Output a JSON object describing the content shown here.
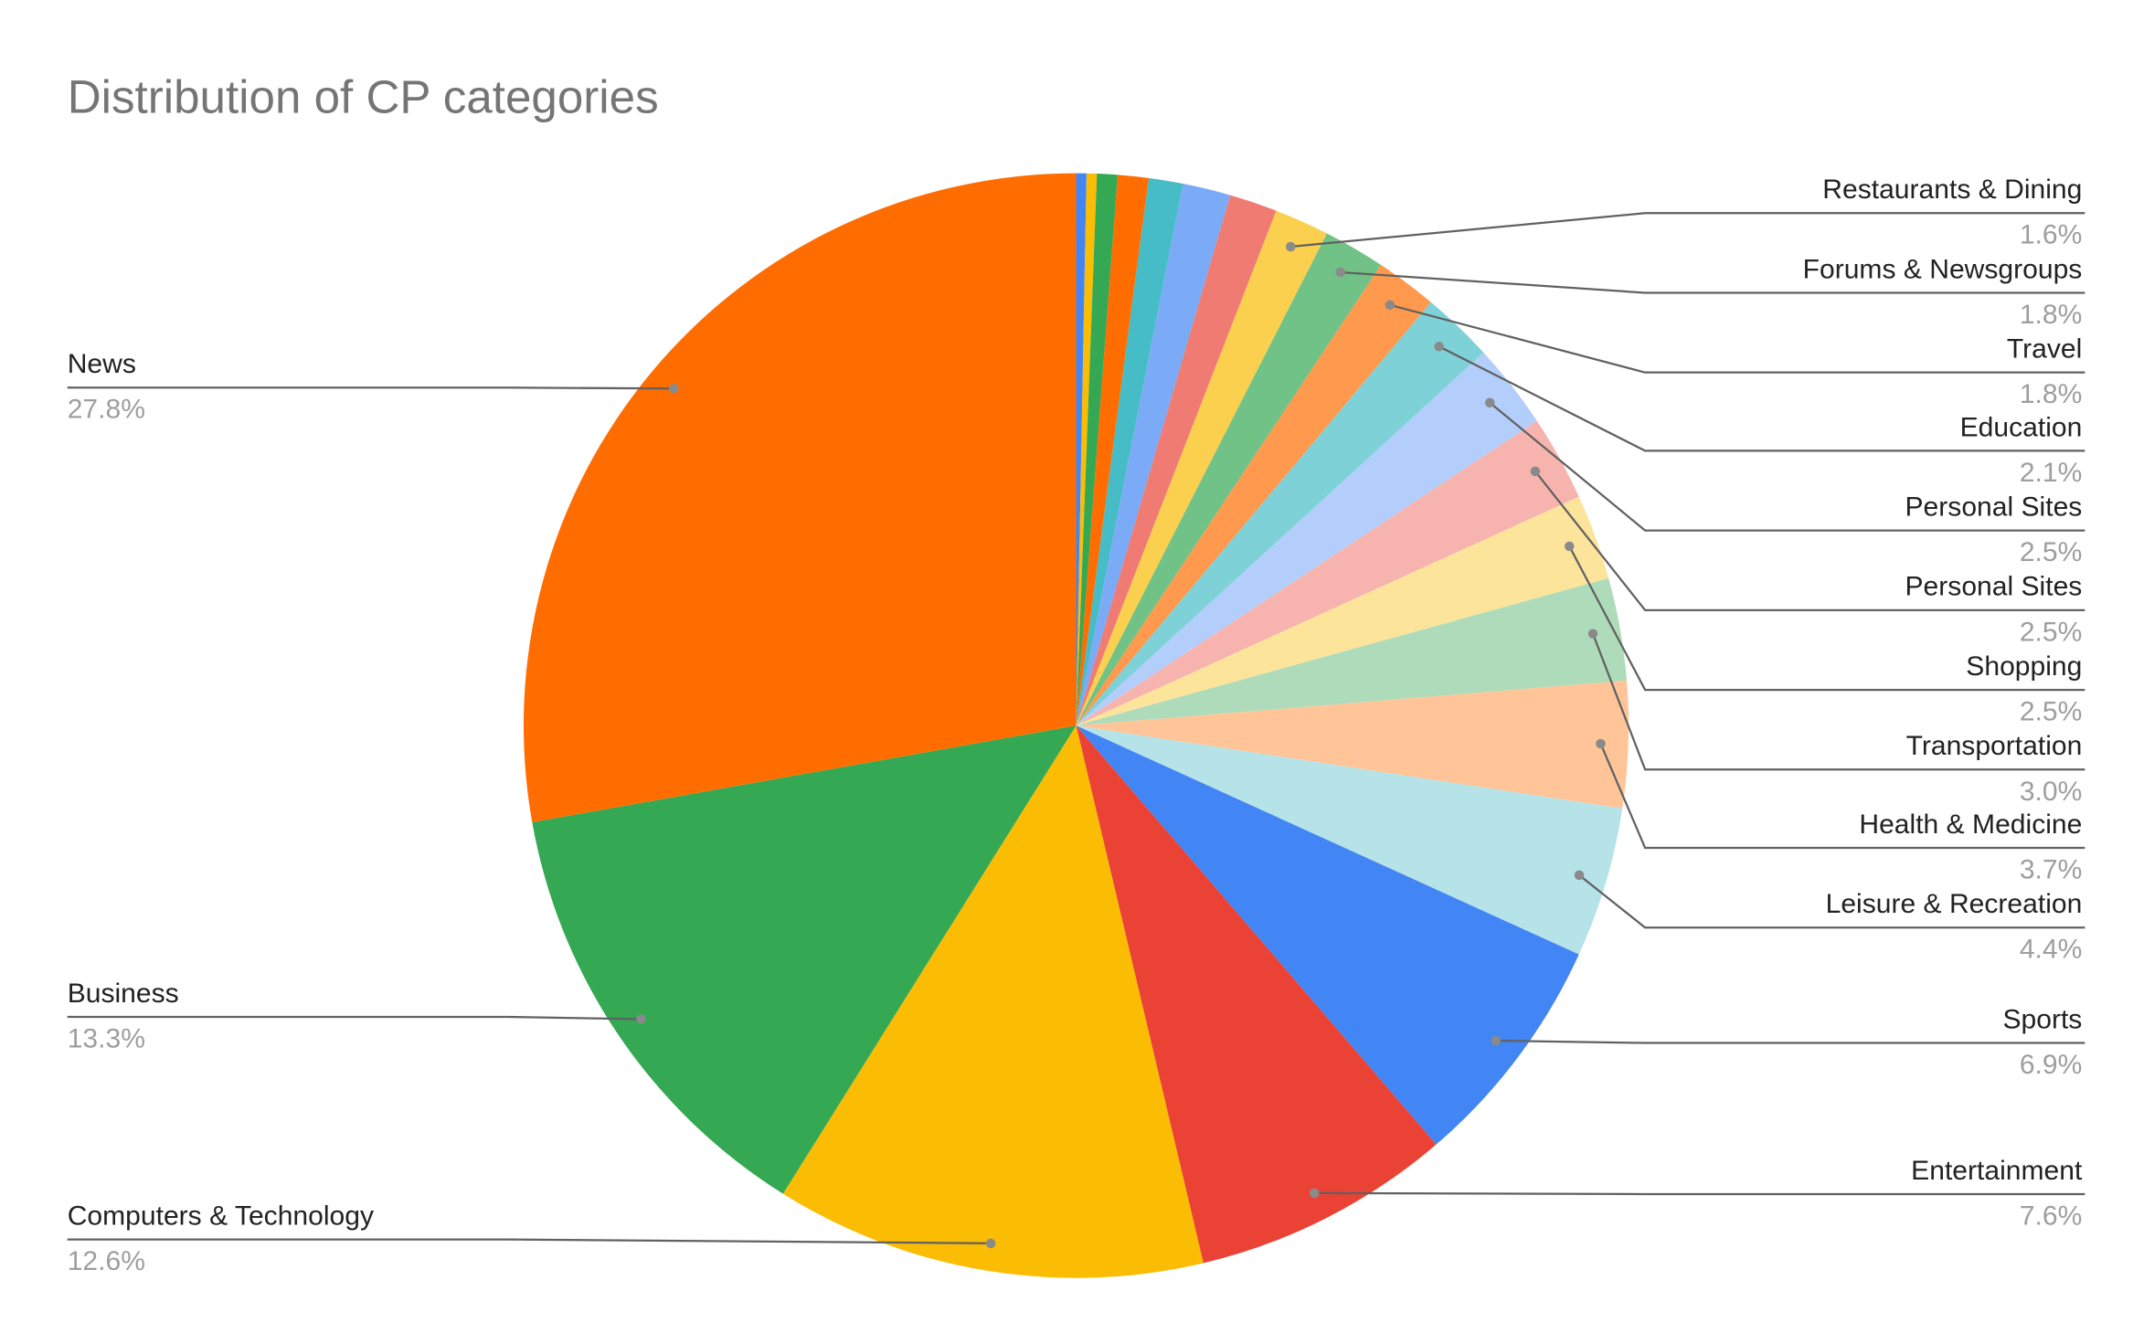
{
  "chart_data": {
    "type": "pie",
    "title": "Distribution of CP categories",
    "categories": [
      null,
      null,
      null,
      null,
      null,
      null,
      null,
      "Restaurants & Dining",
      "Forums & Newsgroups",
      "Travel",
      "Education",
      "Personal Sites",
      "Personal Sites",
      "Shopping",
      "Transportation",
      "Health & Medicine",
      "Leisure & Recreation",
      "Sports",
      "Entertainment",
      "Computers & Technology",
      "Business",
      "News"
    ],
    "values": [
      0.3,
      0.3,
      0.6,
      0.9,
      1.0,
      1.4,
      1.4,
      1.6,
      1.8,
      1.8,
      2.1,
      2.5,
      2.5,
      2.5,
      3.0,
      3.7,
      4.4,
      6.9,
      7.6,
      12.6,
      13.3,
      27.8
    ],
    "value_labels": [
      null,
      null,
      null,
      null,
      null,
      null,
      null,
      "1.6%",
      "1.8%",
      "1.8%",
      "2.1%",
      "2.5%",
      "2.5%",
      "2.5%",
      "3.0%",
      "3.7%",
      "4.4%",
      "6.9%",
      "7.6%",
      "12.6%",
      "13.3%",
      "27.8%"
    ],
    "colors": [
      "#4285f4",
      "#fbbc04",
      "#34a853",
      "#ff6d01",
      "#46bdc6",
      "#7baaf7",
      "#f07b72",
      "#fcd04f",
      "#71c287",
      "#ff994d",
      "#7ed1d7",
      "#b3cefb",
      "#f7b4ae",
      "#fde49b",
      "#aedcba",
      "#ffc599",
      "#b5e3e8",
      "#4285f4",
      "#ea4335",
      "#fbbc04",
      "#34a853",
      "#ff6d01"
    ]
  }
}
